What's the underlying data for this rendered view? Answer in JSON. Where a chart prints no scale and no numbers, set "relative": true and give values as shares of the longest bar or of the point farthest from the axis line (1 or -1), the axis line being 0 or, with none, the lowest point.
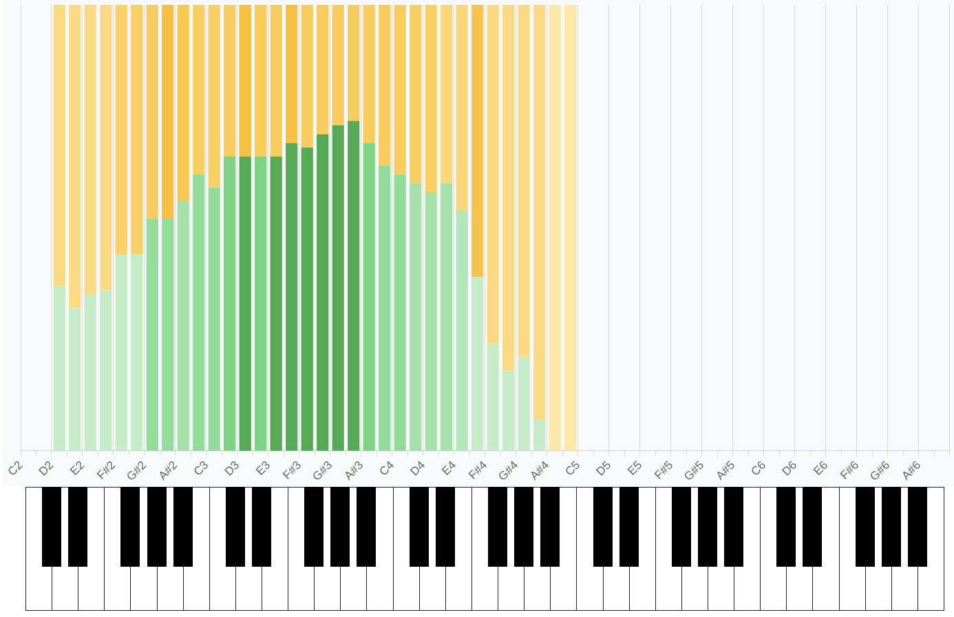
{
  "chart_data": {
    "type": "bar",
    "stacked": true,
    "relative": true,
    "grid": "x",
    "legend": false,
    "categories": [
      "C2",
      null,
      "D2",
      null,
      "E2",
      null,
      "F#2",
      null,
      "G#2",
      null,
      "A#2",
      null,
      "C3",
      null,
      "D3",
      null,
      "E3",
      null,
      "F#3",
      null,
      "G#3",
      null,
      "A#3",
      null,
      "C4",
      null,
      "D4",
      null,
      "E4",
      null,
      "F#4",
      null,
      "G#4",
      null,
      "A#4",
      null,
      "C5",
      null,
      "D5",
      null,
      "E5",
      null,
      "F#5",
      null,
      "G#5",
      null,
      "A#5",
      null,
      "C6",
      null,
      "D6",
      null,
      "E6",
      null,
      "F#6",
      null,
      "G#6",
      null,
      "A#6",
      null
    ],
    "series": [
      {
        "values": [
          null,
          null,
          0.37,
          0.32,
          0.35,
          0.36,
          0.44,
          0.44,
          0.52,
          0.52,
          0.56,
          0.62,
          0.59,
          0.66,
          0.66,
          0.66,
          0.66,
          0.69,
          0.68,
          0.71,
          0.73,
          0.74,
          0.69,
          0.64,
          0.62,
          0.6,
          0.58,
          0.6,
          0.54,
          0.39,
          0.24,
          0.18,
          0.21,
          0.07,
          0,
          0,
          null,
          null,
          null,
          null,
          null,
          null,
          null,
          null,
          null,
          null,
          null,
          null,
          null,
          null,
          null,
          null,
          null,
          null,
          null,
          null,
          null,
          null,
          null,
          null
        ],
        "colors": [
          "#c5ebc8",
          "#c5ebc8",
          "#c5ebc8",
          "#c5ebc8",
          "#c5ebc8",
          "#c5ebc8",
          "#c5ebc8",
          "#c5ebc8",
          "#94dc9a",
          "#94dc9a",
          "#a6e0aa",
          "#92db98",
          "#92db98",
          "#7dd283",
          "#56a955",
          "#7dd283",
          "#56a955",
          "#56a955",
          "#56a955",
          "#56a955",
          "#56a955",
          "#56a955",
          "#7dd283",
          "#92db98",
          "#92db98",
          "#a6e0aa",
          "#a6e0aa",
          "#a6e0aa",
          "#b3e6b8",
          "#c5ebc8",
          "#c5ebc8",
          "#c5ebc8",
          "#c5ebc8",
          "#c5ebc8",
          "#c5ebc8",
          "#c5ebc8",
          "#c5ebc8",
          "#c5ebc8",
          "#c5ebc8",
          "#c5ebc8",
          "#c5ebc8",
          "#c5ebc8",
          "#c5ebc8",
          "#c5ebc8",
          "#c5ebc8",
          "#c5ebc8",
          "#c5ebc8",
          "#c5ebc8",
          "#c5ebc8",
          "#c5ebc8",
          "#c5ebc8",
          "#c5ebc8",
          "#c5ebc8",
          "#c5ebc8",
          "#c5ebc8",
          "#c5ebc8",
          "#c5ebc8",
          "#c5ebc8",
          "#c5ebc8",
          "#c5ebc8"
        ]
      },
      {
        "values": [
          null,
          null,
          0.63,
          0.68,
          0.65,
          0.64,
          0.56,
          0.56,
          0.48,
          0.48,
          0.44,
          0.38,
          0.41,
          0.34,
          0.34,
          0.34,
          0.34,
          0.31,
          0.32,
          0.29,
          0.27,
          0.26,
          0.31,
          0.36,
          0.38,
          0.4,
          0.42,
          0.4,
          0.46,
          0.61,
          0.76,
          0.82,
          0.79,
          0.93,
          1,
          1,
          null,
          null,
          null,
          null,
          null,
          null,
          null,
          null,
          null,
          null,
          null,
          null,
          null,
          null,
          null,
          null,
          null,
          null,
          null,
          null,
          null,
          null,
          null,
          null
        ],
        "colors": [
          "#fadb84",
          "#fadb84",
          "#fadb84",
          "#fadb84",
          "#fadb84",
          "#fadb84",
          "#f8d06a",
          "#f8d06a",
          "#f8cc5e",
          "#f6c043",
          "#f7c853",
          "#f8cf63",
          "#f8cf63",
          "#f8cc5e",
          "#f6c043",
          "#f8cc5e",
          "#f8cc5e",
          "#f6c043",
          "#f8cc5e",
          "#f8cc5e",
          "#f8cc5e",
          "#f8cc5e",
          "#f8cc5e",
          "#f8cc5e",
          "#f8cc5e",
          "#f8cf63",
          "#f8cf63",
          "#fad77a",
          "#fad77a",
          "#f7c44b",
          "#fadb84",
          "#fadb84",
          "#fadb84",
          "#fadb84",
          "#fce8a8",
          "#fce8a8",
          "#fce8a8",
          "#fce8a8",
          "#fce8a8",
          "#fce8a8",
          "#fce8a8",
          "#fce8a8",
          "#fce8a8",
          "#fce8a8",
          "#fce8a8",
          "#fce8a8",
          "#fce8a8",
          "#fce8a8",
          "#fce8a8",
          "#fce8a8",
          "#fce8a8",
          "#fce8a8",
          "#fce8a8",
          "#fce8a8",
          "#fce8a8",
          "#fce8a8",
          "#fce8a8",
          "#fce8a8",
          "#fce8a8",
          "#fce8a8"
        ]
      }
    ]
  }
}
